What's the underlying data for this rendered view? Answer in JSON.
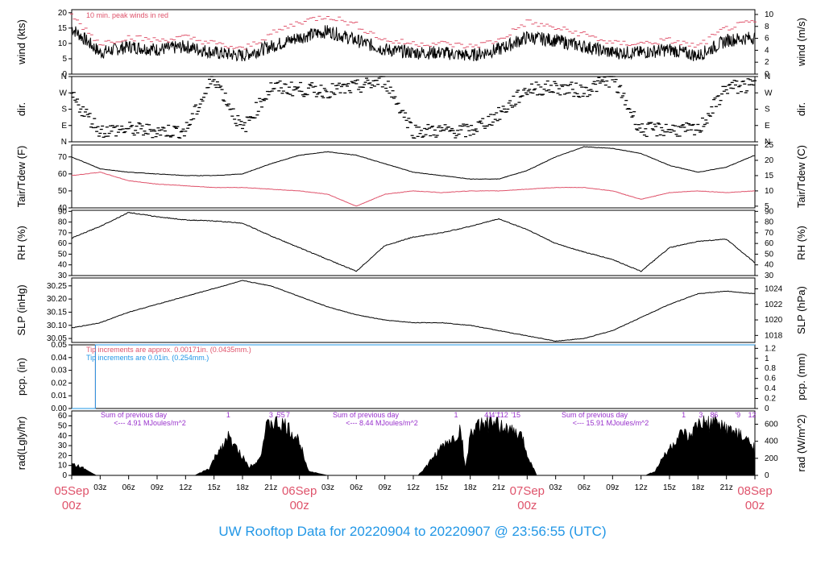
{
  "figure_title": "UW Rooftop Data for 20220904  to  20220907 @ 23:56:55  (UTC)",
  "colors": {
    "black": "#000000",
    "red": "#df536b",
    "blue": "#2297e6",
    "purple": "#9932cc",
    "title_blue": "#2297e6",
    "date_red": "#df536b"
  },
  "x_axis": {
    "ticks": [
      "03z",
      "06z",
      "09z",
      "12z",
      "15z",
      "18z",
      "21z",
      "03z",
      "06z",
      "09z",
      "12z",
      "15z",
      "18z",
      "21z",
      "03z",
      "06z",
      "09z",
      "12z",
      "15z",
      "18z",
      "21z"
    ],
    "date_labels": [
      {
        "date": "05Sep",
        "time": "00z"
      },
      {
        "date": "06Sep",
        "time": "00z"
      },
      {
        "date": "07Sep",
        "time": "00z"
      },
      {
        "date": "08Sep",
        "time": "00z"
      }
    ]
  },
  "chart_data": [
    {
      "type": "line",
      "panel": "wind",
      "ylabel_left": "wind (kts)",
      "ylabel_right": "wind (m/s)",
      "yticks_left": [
        "0",
        "5",
        "10",
        "15",
        "20"
      ],
      "yticks_right": [
        "0",
        "2",
        "4",
        "6",
        "8",
        "10"
      ],
      "ylim": [
        0,
        21
      ],
      "annotation": "10 min. peak winds in red",
      "x_hours": [
        0,
        3,
        6,
        9,
        12,
        15,
        18,
        21,
        24,
        27,
        30,
        33,
        36,
        39,
        42,
        45,
        48,
        51,
        54,
        57,
        60,
        63,
        66,
        69,
        72
      ],
      "series": [
        {
          "values": [
            15,
            7,
            9,
            8,
            9,
            7,
            6,
            9,
            12,
            14,
            11,
            8,
            7,
            7,
            6,
            8,
            12,
            11,
            9,
            7,
            7,
            8,
            6,
            11,
            12
          ]
        },
        {
          "color": "red",
          "values": [
            19,
            10,
            12,
            11,
            12,
            10,
            8,
            13,
            17,
            19,
            16,
            11,
            10,
            10,
            9,
            11,
            17,
            15,
            13,
            10,
            10,
            11,
            9,
            15,
            17
          ]
        }
      ]
    },
    {
      "type": "scatter",
      "panel": "dir",
      "ylabel_left": "dir.",
      "ylabel_right": "dir.",
      "yticks_left": [
        "N",
        "E",
        "S",
        "W",
        "N"
      ],
      "yticks_right": [
        "N",
        "E",
        "S",
        "W",
        "N"
      ],
      "ylim": [
        0,
        360
      ],
      "x_hours": [
        0,
        3,
        6,
        9,
        12,
        15,
        18,
        21,
        24,
        27,
        30,
        33,
        36,
        39,
        42,
        45,
        48,
        51,
        54,
        57,
        60,
        63,
        66,
        69,
        72
      ],
      "values": [
        250,
        60,
        70,
        60,
        60,
        360,
        65,
        300,
        290,
        280,
        300,
        340,
        60,
        60,
        60,
        150,
        290,
        300,
        280,
        350,
        65,
        70,
        60,
        300,
        310
      ]
    },
    {
      "type": "line",
      "panel": "temp",
      "ylabel_left": "Tair/Tdew (F)",
      "ylabel_right": "Tair/Tdew (C)",
      "yticks_left": [
        "40",
        "50",
        "60",
        "70"
      ],
      "yticks_right": [
        "5",
        "10",
        "15",
        "20",
        "25"
      ],
      "ylim": [
        40,
        77
      ],
      "x_hours": [
        0,
        3,
        6,
        9,
        12,
        15,
        18,
        21,
        24,
        27,
        30,
        33,
        36,
        39,
        42,
        45,
        48,
        51,
        54,
        57,
        60,
        63,
        66,
        69,
        72
      ],
      "series": [
        {
          "name": "Tair",
          "values": [
            70,
            63,
            61,
            60,
            59,
            59,
            60,
            66,
            71,
            73,
            71,
            66,
            61,
            59,
            57,
            57,
            62,
            70,
            76,
            75,
            72,
            65,
            61,
            64,
            71
          ]
        },
        {
          "name": "Tdew",
          "color": "red",
          "values": [
            59,
            61,
            56,
            54,
            53,
            52,
            52,
            51,
            50,
            48,
            41,
            48,
            50,
            49,
            50,
            50,
            51,
            52,
            52,
            50,
            45,
            49,
            50,
            49,
            50
          ]
        }
      ]
    },
    {
      "type": "line",
      "panel": "rh",
      "ylabel_left": "RH (%)",
      "ylabel_right": "RH (%)",
      "yticks_left": [
        "30",
        "40",
        "50",
        "60",
        "70",
        "80",
        "90"
      ],
      "yticks_right": [
        "30",
        "40",
        "50",
        "60",
        "70",
        "80",
        "90"
      ],
      "ylim": [
        30,
        91
      ],
      "x_hours": [
        0,
        3,
        6,
        9,
        12,
        15,
        18,
        21,
        24,
        27,
        30,
        33,
        36,
        39,
        42,
        45,
        48,
        51,
        54,
        57,
        60,
        63,
        66,
        69,
        72
      ],
      "values": [
        65,
        76,
        89,
        85,
        82,
        81,
        79,
        67,
        56,
        45,
        34,
        58,
        66,
        70,
        76,
        83,
        73,
        60,
        52,
        45,
        34,
        56,
        62,
        64,
        42
      ]
    },
    {
      "type": "line",
      "panel": "slp",
      "ylabel_left": "SLP (inHg)",
      "ylabel_right": "SLP (hPa)",
      "yticks_left": [
        "30.05",
        "30.10",
        "30.15",
        "30.20",
        "30.25"
      ],
      "yticks_right": [
        "1018",
        "1020",
        "1022",
        "1024"
      ],
      "ylim": [
        30.035,
        30.28
      ],
      "x_hours": [
        0,
        3,
        6,
        9,
        12,
        15,
        18,
        21,
        24,
        27,
        30,
        33,
        36,
        39,
        42,
        45,
        48,
        51,
        54,
        57,
        60,
        63,
        66,
        69,
        72
      ],
      "values": [
        30.09,
        30.11,
        30.15,
        30.18,
        30.21,
        30.24,
        30.27,
        30.25,
        30.21,
        30.17,
        30.14,
        30.12,
        30.11,
        30.11,
        30.1,
        30.08,
        30.06,
        30.04,
        30.05,
        30.08,
        30.13,
        30.18,
        30.22,
        30.23,
        30.22
      ]
    },
    {
      "type": "line",
      "panel": "pcp",
      "ylabel_left": "pcp. (in)",
      "ylabel_right": "pcp. (mm)",
      "yticks_left": [
        "0.00",
        "0.01",
        "0.02",
        "0.03",
        "0.04",
        "0.05"
      ],
      "yticks_right": [
        "0",
        "0.2",
        "0.4",
        "0.6",
        "0.8",
        "1",
        "1.2"
      ],
      "ylim": [
        0,
        0.05
      ],
      "annotations": [
        {
          "text": "Tip increments are approx. 0.00171in. (0.0435mm.)",
          "color": "red"
        },
        {
          "text": "Tip increments are 0.01in. (0.254mm.)",
          "color": "blue"
        }
      ],
      "x_hours": [
        0,
        2.5,
        2.5,
        72
      ],
      "series": [
        {
          "color": "red",
          "values": [
            0,
            0,
            0.05,
            0.05
          ]
        },
        {
          "color": "blue",
          "values": [
            0,
            0,
            0.05,
            0.05
          ]
        }
      ]
    },
    {
      "type": "area",
      "panel": "rad",
      "ylabel_left": "rad(Lgly/hr)",
      "ylabel_right": "rad (W/m^2)",
      "yticks_left": [
        "0",
        "10",
        "20",
        "30",
        "40",
        "50",
        "60"
      ],
      "yticks_right": [
        "0",
        "200",
        "400",
        "600"
      ],
      "ylim": [
        0,
        65
      ],
      "daily_sums": [
        {
          "heading": "Sum of previous day",
          "value": "<--- 4.91 MJoules/m^2"
        },
        {
          "heading": "Sum of previous day",
          "value": "<--- 8.44 MJoules/m^2"
        },
        {
          "heading": "Sum of previous day",
          "value": "<--- 15.91 MJoules/m^2"
        }
      ],
      "hour_marks": [
        {
          "hour": 16.5,
          "label": "1"
        },
        {
          "hour": 21.0,
          "label": "3"
        },
        {
          "hour": 21.8,
          "label": "5"
        },
        {
          "hour": 22.2,
          "label": "'5"
        },
        {
          "hour": 22.8,
          "label": "7"
        },
        {
          "hour": 40.5,
          "label": "1"
        },
        {
          "hour": 43.7,
          "label": "4"
        },
        {
          "hour": 44.1,
          "label": "1"
        },
        {
          "hour": 44.4,
          "label": "4"
        },
        {
          "hour": 44.9,
          "label": "'1"
        },
        {
          "hour": 45.5,
          "label": "'12"
        },
        {
          "hour": 46.8,
          "label": "'15"
        },
        {
          "hour": 64.5,
          "label": "1"
        },
        {
          "hour": 66.3,
          "label": "3"
        },
        {
          "hour": 67.5,
          "label": "8"
        },
        {
          "hour": 67.9,
          "label": "6"
        },
        {
          "hour": 70.2,
          "label": "'9"
        },
        {
          "hour": 71.7,
          "label": "12"
        }
      ],
      "x_hours": [
        0,
        1,
        2,
        2.6,
        13,
        14.5,
        15.5,
        16.5,
        18,
        18.7,
        19.8,
        20.5,
        21,
        22.5,
        24,
        25,
        26,
        27,
        36.5,
        37.5,
        38.5,
        39.5,
        40.5,
        41,
        41.5,
        42,
        43.5,
        45.5,
        47.5,
        48,
        49,
        60.5,
        61.5,
        62.5,
        63.5,
        64,
        64.5,
        65,
        66,
        68,
        70,
        72
      ],
      "values": [
        14,
        10,
        3,
        0,
        0,
        8,
        30,
        45,
        22,
        10,
        20,
        55,
        62,
        58,
        40,
        5,
        2,
        0,
        0,
        12,
        28,
        38,
        45,
        55,
        8,
        50,
        62,
        58,
        45,
        25,
        0,
        0,
        5,
        25,
        38,
        45,
        50,
        42,
        60,
        62,
        50,
        35
      ]
    }
  ]
}
